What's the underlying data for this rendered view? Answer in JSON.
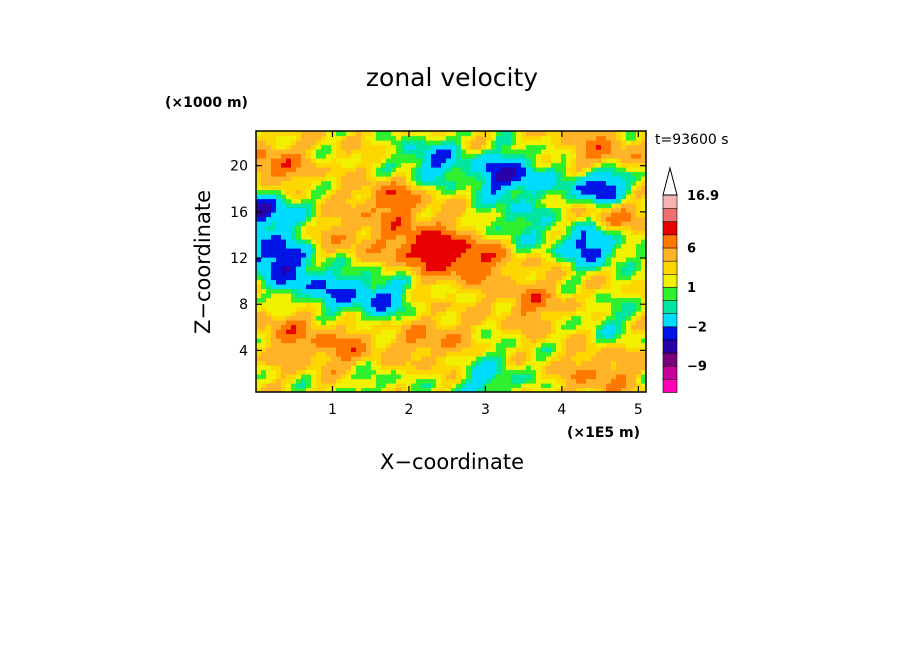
{
  "chart_data": {
    "type": "heatmap",
    "title": "zonal velocity",
    "xlabel": "X−coordinate",
    "ylabel": "Z−coordinate",
    "x_unit": "(×1E5 m)",
    "y_unit": "(×1000 m)",
    "time_label": "t=93600 s",
    "xlim": [
      0.0,
      5.1
    ],
    "ylim": [
      0.4,
      23.0
    ],
    "x_ticks": [
      "1",
      "2",
      "3",
      "4",
      "5"
    ],
    "x_tick_values": [
      1,
      2,
      3,
      4,
      5
    ],
    "y_ticks": [
      "4",
      "8",
      "12",
      "16",
      "20"
    ],
    "y_tick_values": [
      4,
      8,
      12,
      16,
      20
    ],
    "colorbar": {
      "labels": [
        {
          "text": "16.9",
          "value": 16.9
        },
        {
          "text": "6",
          "value": 6
        },
        {
          "text": "1",
          "value": 1
        },
        {
          "text": "−2",
          "value": -2
        },
        {
          "text": "−9",
          "value": -9
        }
      ],
      "levels": [
        -16,
        -12,
        -9,
        -6,
        -4,
        -2,
        -1,
        0,
        1,
        2,
        4,
        6,
        9,
        12,
        16.9
      ],
      "colors": [
        "#ff00b4",
        "#c8009a",
        "#7a007a",
        "#2a00aa",
        "#0014e6",
        "#00dcff",
        "#00e5a0",
        "#2ff02f",
        "#f0f000",
        "#ffd700",
        "#ffb428",
        "#ff7800",
        "#e60000",
        "#f06e6e",
        "#f5b4b4"
      ],
      "extend_max": true
    },
    "features": [
      {
        "x": 0.1,
        "z": 16.2,
        "value": -7
      },
      {
        "x": 0.2,
        "z": 12.2,
        "value": -6
      },
      {
        "x": 0.9,
        "z": 9.2,
        "value": -4
      },
      {
        "x": 1.6,
        "z": 8.6,
        "value": -5
      },
      {
        "x": 2.3,
        "z": 20.4,
        "value": -5
      },
      {
        "x": 3.3,
        "z": 19.2,
        "value": -7
      },
      {
        "x": 4.5,
        "z": 18.2,
        "value": -8
      },
      {
        "x": 4.4,
        "z": 13.4,
        "value": -7
      },
      {
        "x": 3.4,
        "z": 15.0,
        "value": -3
      },
      {
        "x": 2.2,
        "z": 13.0,
        "value": 6
      },
      {
        "x": 2.8,
        "z": 12.0,
        "value": 5
      },
      {
        "x": 1.8,
        "z": 17.0,
        "value": 4
      },
      {
        "x": 0.2,
        "z": 19.8,
        "value": 4
      },
      {
        "x": 4.5,
        "z": 20.8,
        "value": 4
      },
      {
        "x": 4.6,
        "z": 15.6,
        "value": 5
      },
      {
        "x": 3.6,
        "z": 8.2,
        "value": 3
      },
      {
        "x": 2.3,
        "z": 5.0,
        "value": 3
      },
      {
        "x": 1.2,
        "z": 4.0,
        "value": 3
      },
      {
        "x": 0.5,
        "z": 5.6,
        "value": 3
      },
      {
        "x": 4.5,
        "z": 2.0,
        "value": 3
      },
      {
        "x": 3.0,
        "z": 1.2,
        "value": -3
      },
      {
        "x": 1.5,
        "z": 1.2,
        "value": -2
      },
      {
        "x": 4.6,
        "z": 6.5,
        "value": -2
      },
      {
        "x": 0.5,
        "z": 10.8,
        "value": -2
      },
      {
        "x": 3.1,
        "z": 3.2,
        "value": -1
      },
      {
        "x": 1.2,
        "z": 14.0,
        "value": 2
      }
    ]
  }
}
